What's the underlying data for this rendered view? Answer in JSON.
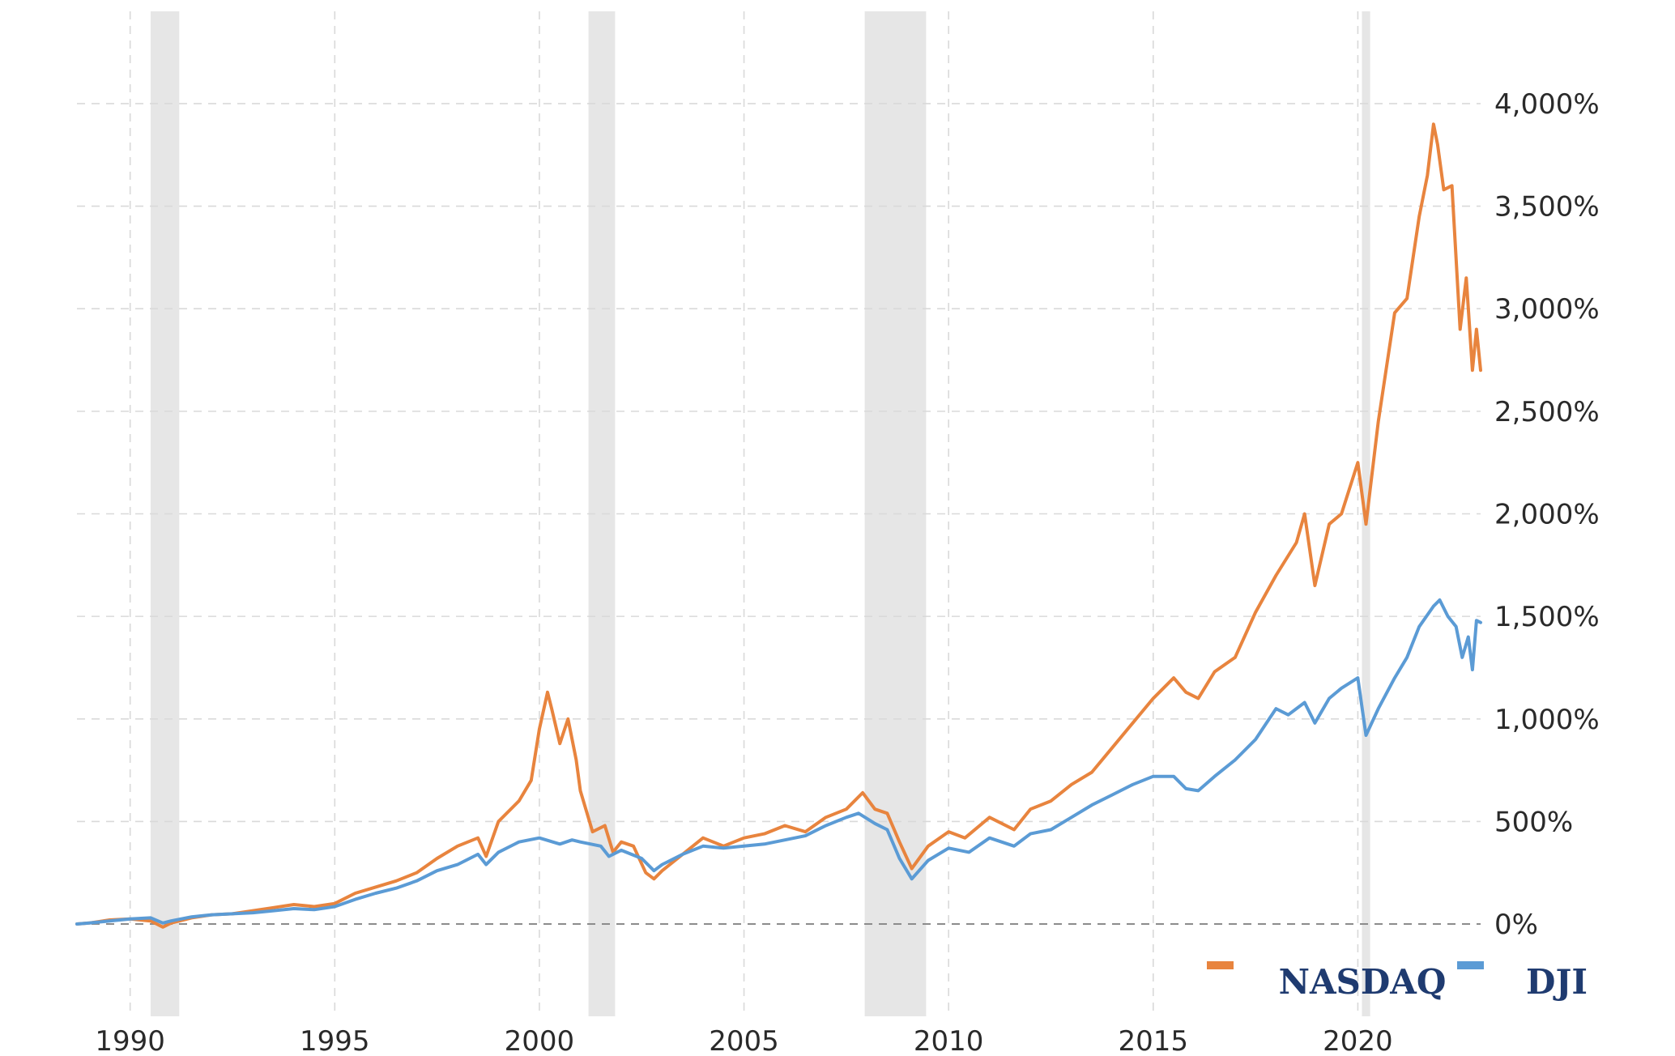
{
  "colors": {
    "nasdaq": "#e8843e",
    "dji": "#5b9bd5",
    "recession": "#e6e6e6",
    "grid": "#d9d9d9",
    "zero_line": "#8c8c8c"
  },
  "legend": [
    {
      "key": "nasdaq",
      "label": "NASDAQ"
    },
    {
      "key": "dji",
      "label": "DJI"
    }
  ],
  "chart_data": {
    "type": "line",
    "xlim": [
      1988.7,
      2023.0
    ],
    "ylim": [
      -450,
      4450
    ],
    "x_ticks": [
      1990,
      1995,
      2000,
      2005,
      2010,
      2015,
      2020
    ],
    "x_tick_labels": [
      "1990",
      "1995",
      "2000",
      "2005",
      "2010",
      "2015",
      "2020"
    ],
    "y_ticks": [
      0,
      500,
      1000,
      1500,
      2000,
      2500,
      3000,
      3500,
      4000
    ],
    "y_tick_labels": [
      "0%",
      "500%",
      "1,000%",
      "1,500%",
      "2,000%",
      "2,500%",
      "3,000%",
      "3,500%",
      "4,000%"
    ],
    "grid": true,
    "legend_position": "bottom-right",
    "recessions": [
      [
        1990.5,
        1991.2
      ],
      [
        2001.2,
        2001.85
      ],
      [
        2007.95,
        2009.45
      ],
      [
        2020.1,
        2020.3
      ]
    ],
    "series": [
      {
        "name": "NASDAQ",
        "color_key": "nasdaq",
        "points": [
          [
            1988.7,
            0
          ],
          [
            1989.0,
            5
          ],
          [
            1989.5,
            20
          ],
          [
            1990.0,
            25
          ],
          [
            1990.5,
            15
          ],
          [
            1990.8,
            -15
          ],
          [
            1991.0,
            5
          ],
          [
            1991.5,
            30
          ],
          [
            1992.0,
            45
          ],
          [
            1992.5,
            50
          ],
          [
            1993.0,
            65
          ],
          [
            1993.5,
            80
          ],
          [
            1994.0,
            95
          ],
          [
            1994.5,
            85
          ],
          [
            1995.0,
            100
          ],
          [
            1995.5,
            150
          ],
          [
            1996.0,
            180
          ],
          [
            1996.5,
            210
          ],
          [
            1997.0,
            250
          ],
          [
            1997.5,
            320
          ],
          [
            1998.0,
            380
          ],
          [
            1998.5,
            420
          ],
          [
            1998.7,
            330
          ],
          [
            1999.0,
            500
          ],
          [
            1999.5,
            600
          ],
          [
            1999.8,
            700
          ],
          [
            2000.0,
            950
          ],
          [
            2000.2,
            1130
          ],
          [
            2000.3,
            1050
          ],
          [
            2000.5,
            880
          ],
          [
            2000.7,
            1000
          ],
          [
            2000.9,
            800
          ],
          [
            2001.0,
            650
          ],
          [
            2001.3,
            450
          ],
          [
            2001.6,
            480
          ],
          [
            2001.8,
            350
          ],
          [
            2002.0,
            400
          ],
          [
            2002.3,
            380
          ],
          [
            2002.6,
            250
          ],
          [
            2002.8,
            220
          ],
          [
            2003.0,
            260
          ],
          [
            2003.5,
            340
          ],
          [
            2004.0,
            420
          ],
          [
            2004.5,
            380
          ],
          [
            2005.0,
            420
          ],
          [
            2005.5,
            440
          ],
          [
            2006.0,
            480
          ],
          [
            2006.5,
            450
          ],
          [
            2007.0,
            520
          ],
          [
            2007.5,
            560
          ],
          [
            2007.9,
            640
          ],
          [
            2008.2,
            560
          ],
          [
            2008.5,
            540
          ],
          [
            2008.8,
            400
          ],
          [
            2009.1,
            270
          ],
          [
            2009.5,
            380
          ],
          [
            2010.0,
            450
          ],
          [
            2010.4,
            420
          ],
          [
            2011.0,
            520
          ],
          [
            2011.6,
            460
          ],
          [
            2012.0,
            560
          ],
          [
            2012.5,
            600
          ],
          [
            2013.0,
            680
          ],
          [
            2013.5,
            740
          ],
          [
            2014.0,
            860
          ],
          [
            2014.5,
            980
          ],
          [
            2015.0,
            1100
          ],
          [
            2015.5,
            1200
          ],
          [
            2015.8,
            1130
          ],
          [
            2016.1,
            1100
          ],
          [
            2016.5,
            1230
          ],
          [
            2017.0,
            1300
          ],
          [
            2017.5,
            1520
          ],
          [
            2018.0,
            1700
          ],
          [
            2018.5,
            1860
          ],
          [
            2018.7,
            2000
          ],
          [
            2018.95,
            1650
          ],
          [
            2019.3,
            1950
          ],
          [
            2019.6,
            2000
          ],
          [
            2020.0,
            2250
          ],
          [
            2020.2,
            1950
          ],
          [
            2020.5,
            2450
          ],
          [
            2020.9,
            2980
          ],
          [
            2021.2,
            3050
          ],
          [
            2021.5,
            3450
          ],
          [
            2021.7,
            3650
          ],
          [
            2021.85,
            3900
          ],
          [
            2021.95,
            3800
          ],
          [
            2022.1,
            3580
          ],
          [
            2022.3,
            3600
          ],
          [
            2022.5,
            2900
          ],
          [
            2022.65,
            3150
          ],
          [
            2022.8,
            2700
          ],
          [
            2022.9,
            2900
          ],
          [
            2023.0,
            2700
          ]
        ]
      },
      {
        "name": "DJI",
        "color_key": "dji",
        "points": [
          [
            1988.7,
            0
          ],
          [
            1989.0,
            5
          ],
          [
            1989.5,
            15
          ],
          [
            1990.0,
            25
          ],
          [
            1990.5,
            30
          ],
          [
            1990.8,
            5
          ],
          [
            1991.0,
            15
          ],
          [
            1991.5,
            35
          ],
          [
            1992.0,
            45
          ],
          [
            1992.5,
            50
          ],
          [
            1993.0,
            55
          ],
          [
            1993.5,
            65
          ],
          [
            1994.0,
            75
          ],
          [
            1994.5,
            70
          ],
          [
            1995.0,
            85
          ],
          [
            1995.5,
            120
          ],
          [
            1996.0,
            150
          ],
          [
            1996.5,
            175
          ],
          [
            1997.0,
            210
          ],
          [
            1997.5,
            260
          ],
          [
            1998.0,
            290
          ],
          [
            1998.5,
            340
          ],
          [
            1998.7,
            290
          ],
          [
            1999.0,
            350
          ],
          [
            1999.5,
            400
          ],
          [
            2000.0,
            420
          ],
          [
            2000.5,
            390
          ],
          [
            2000.8,
            410
          ],
          [
            2001.0,
            400
          ],
          [
            2001.5,
            380
          ],
          [
            2001.7,
            330
          ],
          [
            2002.0,
            360
          ],
          [
            2002.5,
            320
          ],
          [
            2002.8,
            260
          ],
          [
            2003.0,
            290
          ],
          [
            2003.5,
            340
          ],
          [
            2004.0,
            380
          ],
          [
            2004.5,
            370
          ],
          [
            2005.0,
            380
          ],
          [
            2005.5,
            390
          ],
          [
            2006.0,
            410
          ],
          [
            2006.5,
            430
          ],
          [
            2007.0,
            480
          ],
          [
            2007.5,
            520
          ],
          [
            2007.8,
            540
          ],
          [
            2008.2,
            490
          ],
          [
            2008.5,
            460
          ],
          [
            2008.8,
            320
          ],
          [
            2009.1,
            220
          ],
          [
            2009.5,
            310
          ],
          [
            2010.0,
            370
          ],
          [
            2010.5,
            350
          ],
          [
            2011.0,
            420
          ],
          [
            2011.6,
            380
          ],
          [
            2012.0,
            440
          ],
          [
            2012.5,
            460
          ],
          [
            2013.0,
            520
          ],
          [
            2013.5,
            580
          ],
          [
            2014.0,
            630
          ],
          [
            2014.5,
            680
          ],
          [
            2015.0,
            720
          ],
          [
            2015.5,
            720
          ],
          [
            2015.8,
            660
          ],
          [
            2016.1,
            650
          ],
          [
            2016.5,
            720
          ],
          [
            2017.0,
            800
          ],
          [
            2017.5,
            900
          ],
          [
            2018.0,
            1050
          ],
          [
            2018.3,
            1020
          ],
          [
            2018.7,
            1080
          ],
          [
            2018.95,
            980
          ],
          [
            2019.3,
            1100
          ],
          [
            2019.6,
            1150
          ],
          [
            2020.0,
            1200
          ],
          [
            2020.2,
            920
          ],
          [
            2020.5,
            1050
          ],
          [
            2020.9,
            1200
          ],
          [
            2021.2,
            1300
          ],
          [
            2021.5,
            1450
          ],
          [
            2021.85,
            1550
          ],
          [
            2022.0,
            1580
          ],
          [
            2022.2,
            1500
          ],
          [
            2022.4,
            1450
          ],
          [
            2022.55,
            1300
          ],
          [
            2022.7,
            1400
          ],
          [
            2022.8,
            1240
          ],
          [
            2022.9,
            1480
          ],
          [
            2023.0,
            1470
          ]
        ]
      }
    ]
  }
}
